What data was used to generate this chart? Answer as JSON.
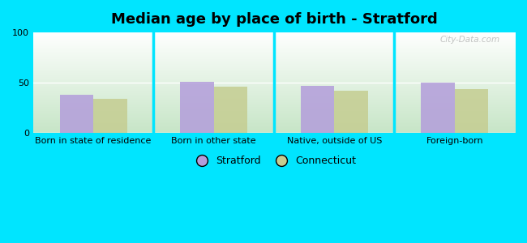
{
  "title": "Median age by place of birth - Stratford",
  "categories": [
    "Born in state of residence",
    "Born in other state",
    "Native, outside of US",
    "Foreign-born"
  ],
  "stratford_values": [
    38,
    51,
    47,
    50
  ],
  "connecticut_values": [
    34,
    46,
    42,
    44
  ],
  "stratford_color": "#b39ddb",
  "connecticut_color": "#c5cd91",
  "ylim": [
    0,
    100
  ],
  "yticks": [
    0,
    50,
    100
  ],
  "background_outer": "#00e5ff",
  "legend_labels": [
    "Stratford",
    "Connecticut"
  ],
  "watermark": "City-Data.com",
  "title_fontsize": 13,
  "tick_fontsize": 8,
  "legend_fontsize": 9,
  "bar_width": 0.28,
  "grad_top": "#ffffff",
  "grad_bottom": "#c8e6c0"
}
